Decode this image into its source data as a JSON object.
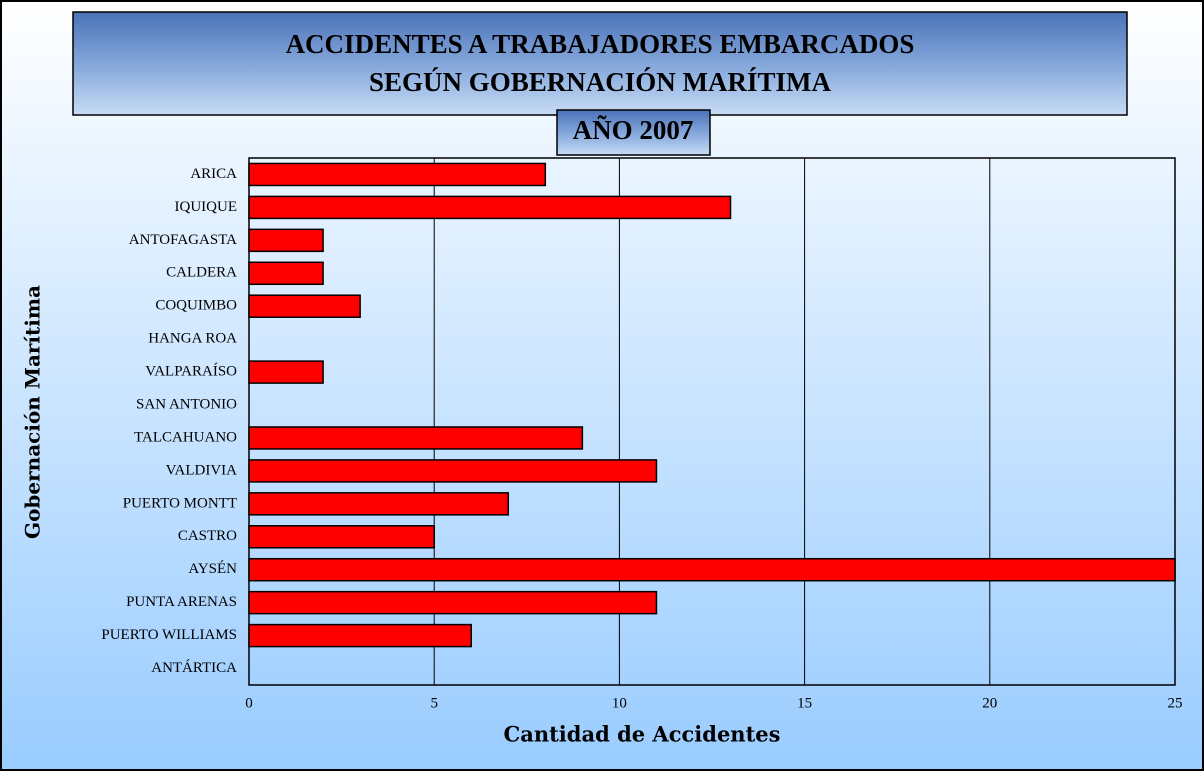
{
  "chart_data": {
    "type": "bar",
    "orientation": "horizontal",
    "title": [
      "ACCIDENTES  A TRABAJADORES EMBARCADOS",
      "SEGÚN GOBERNACIÓN MARÍTIMA"
    ],
    "subtitle": "AÑO 2007",
    "x_label": "Cantidad de Accidentes",
    "y_label": "Gobernación Marítima",
    "categories": [
      "ARICA",
      "IQUIQUE",
      "ANTOFAGASTA",
      "CALDERA",
      "COQUIMBO",
      "HANGA ROA",
      "VALPARAÍSO",
      "SAN ANTONIO",
      "TALCAHUANO",
      "VALDIVIA",
      "PUERTO MONTT",
      "CASTRO",
      "AYSÉN",
      "PUNTA ARENAS",
      "PUERTO WILLIAMS",
      "ANTÁRTICA"
    ],
    "values": [
      8,
      13,
      2,
      2,
      3,
      0,
      2,
      0,
      9,
      11,
      7,
      5,
      25,
      11,
      6,
      0
    ],
    "color": "#ff0000",
    "xlim": [
      0,
      25
    ],
    "xticks": [
      0,
      5,
      10,
      15,
      20,
      25
    ],
    "grid": true
  }
}
